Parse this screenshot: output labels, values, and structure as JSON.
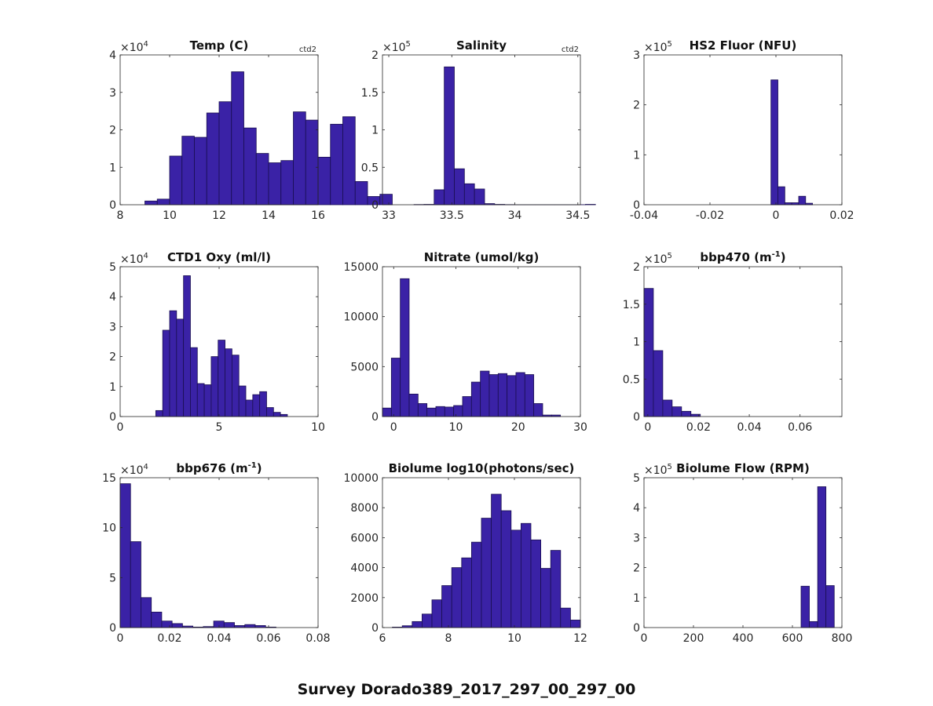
{
  "figure_title": "Survey Dorado389_2017_297_00_297_00",
  "colors": {
    "bar_fill": "#3a22a6",
    "bar_edge": "#1a0f50",
    "axis": "#262626",
    "background": "#ffffff"
  },
  "chart_data": [
    {
      "type": "bar",
      "title": "Temp (C)",
      "tag": "ctd2",
      "exponent": "4",
      "bin_start": 9.0,
      "bin_width": 0.5,
      "values": [
        0.1,
        0.15,
        1.3,
        1.83,
        1.8,
        2.45,
        2.75,
        3.55,
        2.05,
        1.37,
        1.12,
        1.18,
        2.48,
        2.26,
        1.27,
        2.15,
        2.35,
        0.62,
        0.22,
        0.28
      ],
      "xlim": [
        8,
        16
      ],
      "ylim": [
        0,
        4
      ],
      "xticks": [
        8,
        10,
        12,
        14,
        16
      ],
      "yticks": [
        0,
        1,
        2,
        3,
        4
      ],
      "xtick_labels": [
        "8",
        "10",
        "12",
        "14",
        "16"
      ],
      "ytick_labels": [
        "0",
        "1",
        "2",
        "3",
        "4"
      ]
    },
    {
      "type": "bar",
      "title": "Salinity",
      "tag": "ctd2",
      "exponent": "5",
      "bin_start": 33.2,
      "bin_width": 0.08,
      "values": [
        0.003,
        0.005,
        0.2,
        1.84,
        0.48,
        0.28,
        0.21,
        0.015,
        0.005,
        0.002,
        0.001,
        0.001,
        0.001,
        0.001,
        0.001,
        0.001,
        0.001,
        0.005
      ],
      "xlim": [
        32.95,
        34.52
      ],
      "ylim": [
        0,
        2
      ],
      "xticks": [
        33,
        33.5,
        34,
        34.5
      ],
      "yticks": [
        0,
        0.5,
        1,
        1.5,
        2
      ],
      "xtick_labels": [
        "33",
        "33.5",
        "34",
        "34.5"
      ],
      "ytick_labels": [
        "0",
        "0.5",
        "1",
        "1.5",
        "2"
      ]
    },
    {
      "type": "bar",
      "title": "HS2 Fluor (NFU)",
      "tag": "",
      "exponent": "5",
      "bin_start": -0.0015,
      "bin_width": 0.0021,
      "values": [
        2.5,
        0.36,
        0.04,
        0.04,
        0.17,
        0.03
      ],
      "xlim": [
        -0.04,
        0.02
      ],
      "ylim": [
        0,
        3
      ],
      "xticks": [
        -0.04,
        -0.02,
        0,
        0.02
      ],
      "yticks": [
        0,
        1,
        2,
        3
      ],
      "xtick_labels": [
        "-0.04",
        "-0.02",
        "0",
        "0.02"
      ],
      "ytick_labels": [
        "0",
        "1",
        "2",
        "3"
      ]
    },
    {
      "type": "bar",
      "title": "CTD1 Oxy (ml/l)",
      "title_sup": "",
      "title_post": "",
      "tag": "",
      "exponent": "4",
      "bin_start": 1.8,
      "bin_width": 0.35,
      "values": [
        0.2,
        2.88,
        3.53,
        3.25,
        4.7,
        2.3,
        1.1,
        1.06,
        2.0,
        2.55,
        2.26,
        2.05,
        1.02,
        0.55,
        0.73,
        0.83,
        0.3,
        0.14,
        0.07
      ],
      "xlim": [
        0,
        10
      ],
      "ylim": [
        0,
        5
      ],
      "xticks": [
        0,
        5,
        10
      ],
      "yticks": [
        0,
        1,
        2,
        3,
        4,
        5
      ],
      "xtick_labels": [
        "0",
        "5",
        "10"
      ],
      "ytick_labels": [
        "0",
        "1",
        "2",
        "3",
        "4",
        "5"
      ]
    },
    {
      "type": "bar",
      "title": "Nitrate (umol/kg)",
      "tag": "",
      "exponent": "",
      "bin_start": -1.8,
      "bin_width": 1.43,
      "values": [
        850,
        5850,
        13800,
        2250,
        1300,
        850,
        1000,
        950,
        1100,
        2000,
        3450,
        4550,
        4200,
        4300,
        4100,
        4400,
        4200,
        1300,
        150,
        150
      ],
      "xlim": [
        -1.8,
        30
      ],
      "ylim": [
        0,
        15000
      ],
      "xticks": [
        0,
        10,
        20,
        30
      ],
      "yticks": [
        0,
        5000,
        10000,
        15000
      ],
      "xtick_labels": [
        "0",
        "10",
        "20",
        "30"
      ],
      "ytick_labels": [
        "0",
        "5000",
        "10000",
        "15000"
      ]
    },
    {
      "type": "bar",
      "title": "bbp470 (m",
      "title_sup": "-1",
      "title_post": ")",
      "tag": "",
      "exponent": "5",
      "bin_start": -0.0015,
      "bin_width": 0.0037,
      "values": [
        1.71,
        0.88,
        0.22,
        0.13,
        0.07,
        0.03
      ],
      "xlim": [
        -0.0015,
        0.0765
      ],
      "ylim": [
        0,
        2
      ],
      "xticks": [
        0,
        0.02,
        0.04,
        0.06
      ],
      "yticks": [
        0,
        0.5,
        1,
        1.5,
        2
      ],
      "xtick_labels": [
        "0",
        "0.02",
        "0.04",
        "0.06"
      ],
      "ytick_labels": [
        "0",
        "0.5",
        "1",
        "1.5",
        "2"
      ]
    },
    {
      "type": "bar",
      "title": "bbp676 (m",
      "title_sup": "-1",
      "title_post": ")",
      "tag": "",
      "exponent": "4",
      "bin_start": 0,
      "bin_width": 0.0042,
      "values": [
        14.4,
        8.6,
        3.0,
        1.55,
        0.65,
        0.4,
        0.15,
        0.05,
        0.1,
        0.65,
        0.5,
        0.2,
        0.3,
        0.2,
        0.05
      ],
      "xlim": [
        0,
        0.08
      ],
      "ylim": [
        0,
        15
      ],
      "xticks": [
        0,
        0.02,
        0.04,
        0.06,
        0.08
      ],
      "yticks": [
        0,
        5,
        10,
        15
      ],
      "xtick_labels": [
        "0",
        "0.02",
        "0.04",
        "0.06",
        "0.08"
      ],
      "ytick_labels": [
        "0",
        "5",
        "10",
        "15"
      ]
    },
    {
      "type": "bar",
      "title": "Biolume log10(photons/sec)",
      "tag": "",
      "exponent": "",
      "bin_start": 6.3,
      "bin_width": 0.3,
      "values": [
        30,
        120,
        400,
        900,
        1850,
        2800,
        4000,
        4650,
        5700,
        7300,
        8900,
        7800,
        6500,
        6950,
        5850,
        3950,
        5150,
        1300,
        500
      ],
      "xlim": [
        6,
        12
      ],
      "ylim": [
        0,
        10000
      ],
      "xticks": [
        6,
        8,
        10,
        12
      ],
      "yticks": [
        0,
        2000,
        4000,
        6000,
        8000,
        10000
      ],
      "xtick_labels": [
        "6",
        "8",
        "10",
        "12"
      ],
      "ytick_labels": [
        "0",
        "2000",
        "4000",
        "6000",
        "8000",
        "10000"
      ]
    },
    {
      "type": "bar",
      "title": "Biolume Flow (RPM)",
      "tag": "",
      "exponent": "5",
      "bin_start": 635,
      "bin_width": 33.5,
      "values": [
        1.38,
        0.2,
        4.7,
        1.4
      ],
      "xlim": [
        0,
        800
      ],
      "ylim": [
        0,
        5
      ],
      "xticks": [
        0,
        200,
        400,
        600,
        800
      ],
      "yticks": [
        0,
        1,
        2,
        3,
        4,
        5
      ],
      "xtick_labels": [
        "0",
        "200",
        "400",
        "600",
        "800"
      ],
      "ytick_labels": [
        "0",
        "1",
        "2",
        "3",
        "4",
        "5"
      ]
    }
  ]
}
